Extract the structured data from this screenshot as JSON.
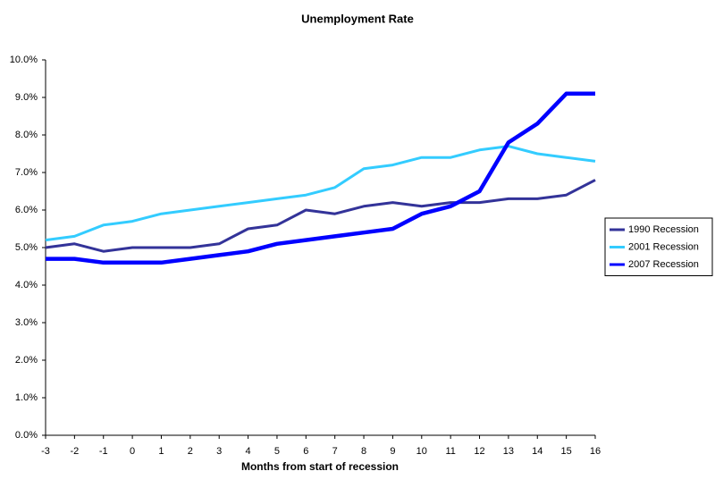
{
  "chart_data": {
    "type": "line",
    "title": "Unemployment Rate",
    "x_label": "Months from start of recession",
    "x": [
      -3,
      -2,
      -1,
      0,
      1,
      2,
      3,
      4,
      5,
      6,
      7,
      8,
      9,
      10,
      11,
      12,
      13,
      14,
      15,
      16
    ],
    "xlim": [
      -3,
      16
    ],
    "xticks": [
      -3,
      -2,
      -1,
      0,
      1,
      2,
      3,
      4,
      5,
      6,
      7,
      8,
      9,
      10,
      11,
      12,
      13,
      14,
      15,
      16
    ],
    "ylim": [
      0,
      10
    ],
    "yticks": [
      {
        "value": 0,
        "label": "0.0%"
      },
      {
        "value": 1,
        "label": "1.0%"
      },
      {
        "value": 2,
        "label": "2.0%"
      },
      {
        "value": 3,
        "label": "3.0%"
      },
      {
        "value": 4,
        "label": "4.0%"
      },
      {
        "value": 5,
        "label": "5.0%"
      },
      {
        "value": 6,
        "label": "6.0%"
      },
      {
        "value": 7,
        "label": "7.0%"
      },
      {
        "value": 8,
        "label": "8.0%"
      },
      {
        "value": 9,
        "label": "9.0%"
      },
      {
        "value": 10,
        "label": "10.0%"
      }
    ],
    "grid": false,
    "legend": "right",
    "series": [
      {
        "name": "1990 Recession",
        "color": "#333399",
        "values": [
          5.0,
          5.1,
          4.9,
          5.0,
          5.0,
          5.0,
          5.1,
          5.5,
          5.6,
          6.0,
          5.9,
          6.1,
          6.2,
          6.1,
          6.2,
          6.2,
          6.3,
          6.3,
          6.4,
          6.8
        ]
      },
      {
        "name": "2001 Recession",
        "color": "#33ccff",
        "values": [
          5.2,
          5.3,
          5.6,
          5.7,
          5.9,
          6.0,
          6.1,
          6.2,
          6.3,
          6.4,
          6.6,
          7.1,
          7.2,
          7.4,
          7.4,
          7.6,
          7.7,
          7.5,
          7.4,
          7.3
        ]
      },
      {
        "name": "2007 Recession",
        "color": "#0000ff",
        "values": [
          4.7,
          4.7,
          4.6,
          4.6,
          4.6,
          4.7,
          4.8,
          4.9,
          5.1,
          5.2,
          5.3,
          5.4,
          5.5,
          5.9,
          6.1,
          6.5,
          7.8,
          8.3,
          9.1,
          9.1
        ]
      }
    ]
  }
}
